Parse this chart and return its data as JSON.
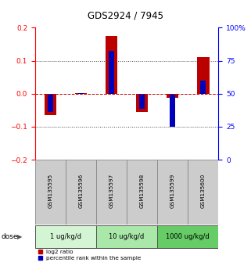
{
  "title": "GDS2924 / 7945",
  "samples": [
    "GSM135595",
    "GSM135596",
    "GSM135597",
    "GSM135598",
    "GSM135599",
    "GSM135600"
  ],
  "log2_ratios": [
    -0.065,
    0.002,
    0.175,
    -0.055,
    -0.013,
    0.11
  ],
  "percentile_ranks_left_scale": [
    -0.054,
    0.001,
    0.13,
    -0.046,
    -0.1,
    0.04
  ],
  "ylim_left": [
    -0.2,
    0.2
  ],
  "ylim_right": [
    0,
    100
  ],
  "yticks_left": [
    -0.2,
    -0.1,
    0.0,
    0.1,
    0.2
  ],
  "yticks_right": [
    0,
    25,
    50,
    75,
    100
  ],
  "ytick_labels_right": [
    "0",
    "25",
    "50",
    "75",
    "100%"
  ],
  "red_color": "#bb0000",
  "blue_color": "#0000bb",
  "dose_groups": [
    {
      "label": "1 ug/kg/d",
      "cols": [
        0,
        1
      ],
      "color": "#d4f5d4"
    },
    {
      "label": "10 ug/kg/d",
      "cols": [
        2,
        3
      ],
      "color": "#aae8aa"
    },
    {
      "label": "1000 ug/kg/d",
      "cols": [
        4,
        5
      ],
      "color": "#66cc66"
    }
  ],
  "dose_label": "dose",
  "legend_red": "log2 ratio",
  "legend_blue": "percentile rank within the sample",
  "hline_zero_color": "#cc0000",
  "hline_dotted_color": "#444444",
  "sample_box_color": "#cccccc",
  "sample_box_edge": "#888888",
  "background_color": "#ffffff"
}
